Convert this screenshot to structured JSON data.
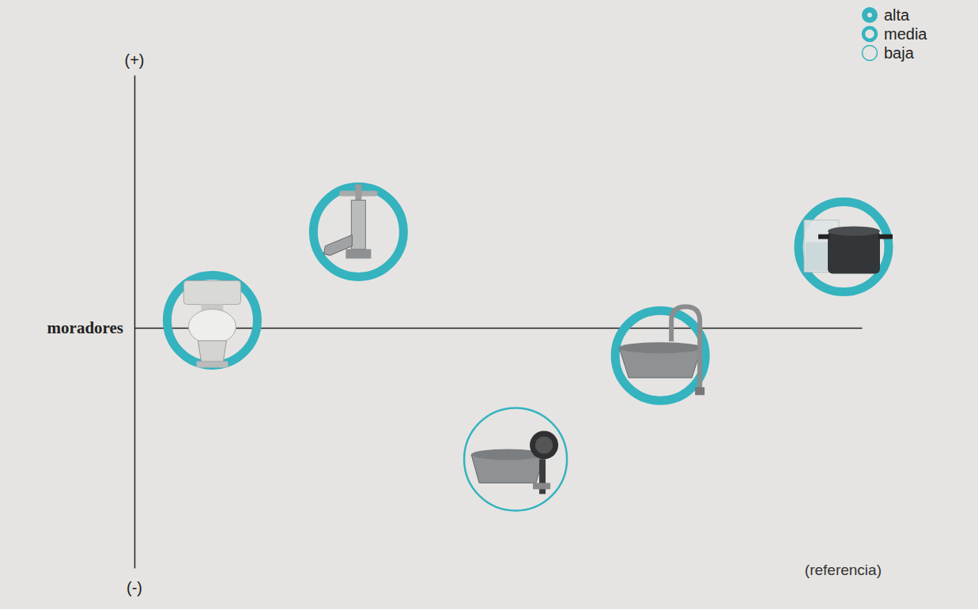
{
  "chart_data": {
    "type": "scatter",
    "xlabel": "moradores",
    "ylabel_max": "(+)",
    "ylabel_min": "(-)",
    "annotations": [
      "(referencia)"
    ],
    "xlim": [
      0,
      100
    ],
    "ylim": [
      -95,
      100
    ],
    "xticks": [],
    "yticks": [],
    "tick_labels": false,
    "grid": false,
    "legend": "top-right",
    "series": [
      {
        "name": "alta",
        "color": "#35b3bf",
        "marker": "disc",
        "x": [],
        "values": []
      },
      {
        "name": "media",
        "color": "#35b3bf",
        "marker": "ring",
        "x": [
          10.7,
          30.8,
          72.3,
          97.5
        ],
        "values": [
          3,
          38,
          -11,
          32
        ]
      },
      {
        "name": "baja",
        "color": "#35b3bf",
        "marker": "ring-thin",
        "x": [
          52.4
        ],
        "values": [
          -52
        ]
      }
    ]
  }
}
